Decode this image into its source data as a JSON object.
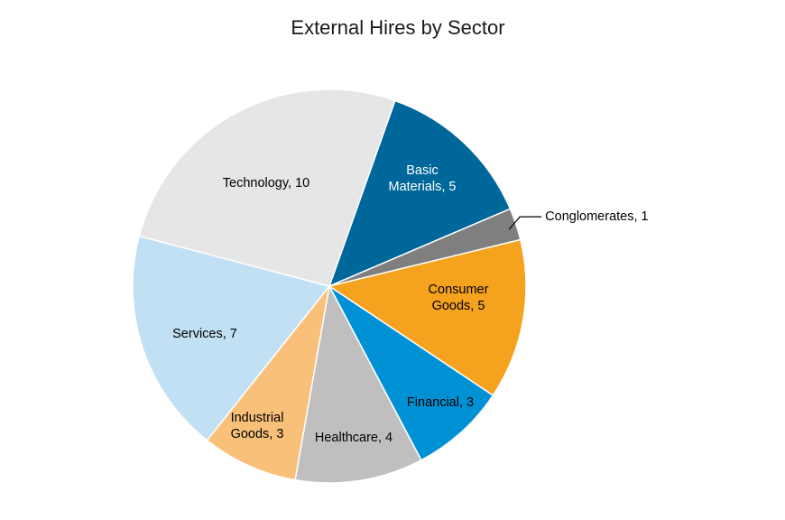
{
  "chart_data": {
    "type": "pie",
    "title": "External Hires by Sector",
    "slices": [
      {
        "label": "Basic Materials",
        "value": 5,
        "color": "#00679a",
        "text_color": "#ffffff",
        "display_lines": [
          "Basic",
          "Materials, 5"
        ]
      },
      {
        "label": "Conglomerates",
        "value": 1,
        "color": "#7f7f7f",
        "text_color": "#000000",
        "display_lines": [
          "Conglomerates, 1"
        ]
      },
      {
        "label": "Consumer Goods",
        "value": 5,
        "color": "#f5a21f",
        "text_color": "#000000",
        "display_lines": [
          "Consumer",
          "Goods, 5"
        ]
      },
      {
        "label": "Financial",
        "value": 3,
        "color": "#0091d5",
        "text_color": "#000000",
        "display_lines": [
          "Financial, 3"
        ]
      },
      {
        "label": "Healthcare",
        "value": 4,
        "color": "#bfbfbf",
        "text_color": "#000000",
        "display_lines": [
          "Healthcare, 4"
        ]
      },
      {
        "label": "Industrial Goods",
        "value": 3,
        "color": "#f9c07a",
        "text_color": "#000000",
        "display_lines": [
          "Industrial",
          "Goods, 3"
        ]
      },
      {
        "label": "Services",
        "value": 7,
        "color": "#c1e0f3",
        "text_color": "#000000",
        "display_lines": [
          "Services, 7"
        ]
      },
      {
        "label": "Technology",
        "value": 10,
        "color": "#e6e6e6",
        "text_color": "#000000",
        "display_lines": [
          "Technology, 10"
        ]
      }
    ]
  }
}
